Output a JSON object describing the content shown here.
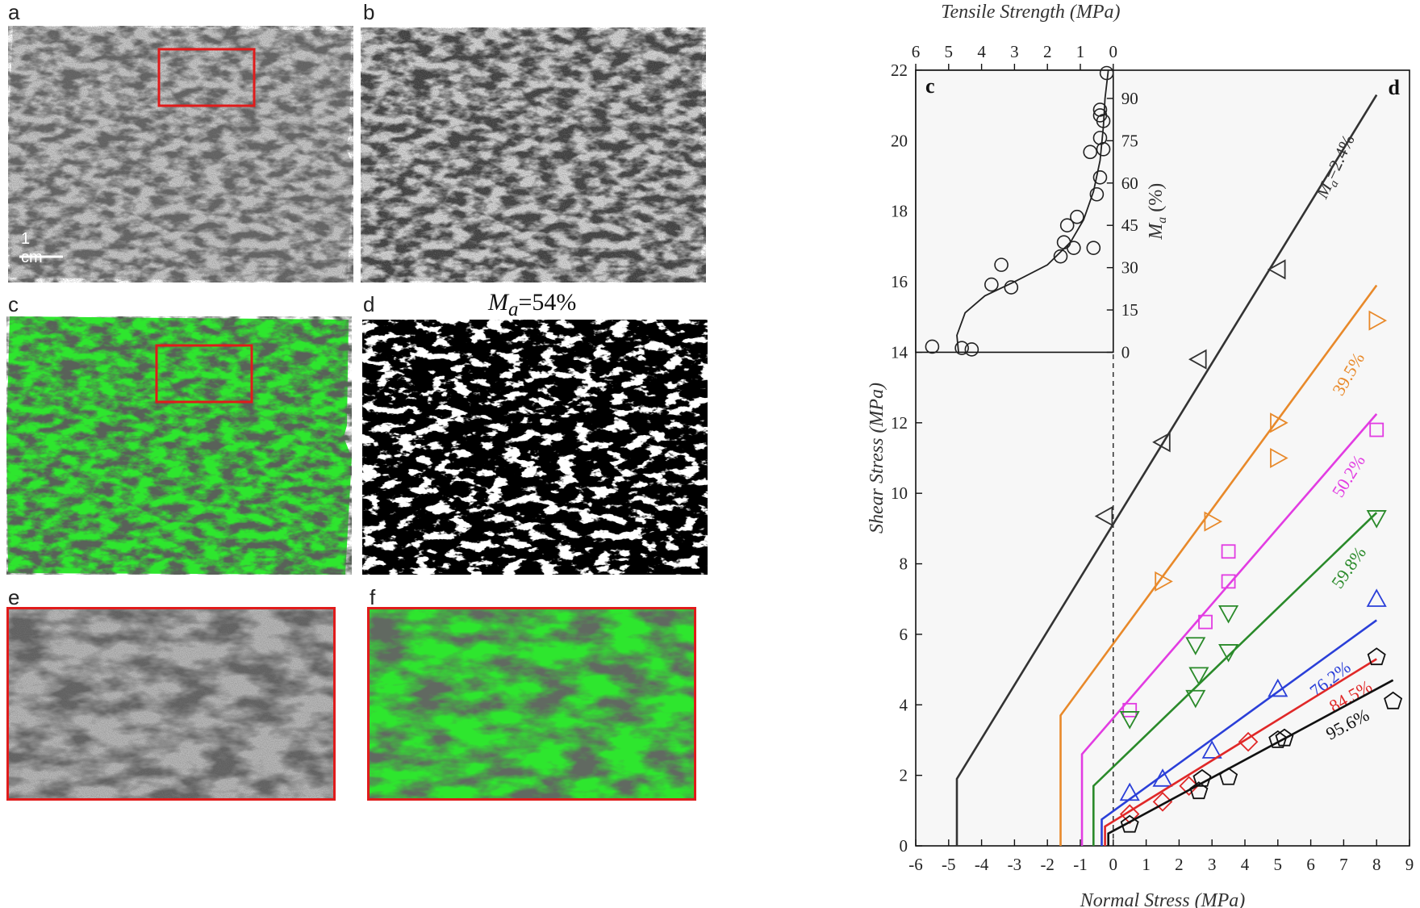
{
  "panels": {
    "a": {
      "label": "a",
      "scale_bar": "1 cm"
    },
    "b": {
      "label": "b"
    },
    "c": {
      "label": "c"
    },
    "d": {
      "label": "d",
      "title_prefix": "M",
      "title_sub": "a",
      "title_suffix": "=54%"
    },
    "e": {
      "label": "e"
    },
    "f": {
      "label": "f"
    }
  },
  "colors": {
    "green_phase": "#2ee62e",
    "dark_rock": "#1a1a1a",
    "light_rock": "#bdbdbd",
    "highlight_box": "#e01b1b"
  },
  "chart_data": [
    {
      "type": "line",
      "panel_label": "d",
      "xlabel": "Normal Stress (MPa)",
      "ylabel": "Shear Stress (MPa)",
      "xlim": [
        -6,
        9
      ],
      "ylim": [
        0,
        22
      ],
      "xticks": [
        -6,
        -5,
        -4,
        -3,
        -2,
        -1,
        0,
        1,
        2,
        3,
        4,
        5,
        6,
        7,
        8,
        9
      ],
      "yticks": [
        0,
        2,
        4,
        6,
        8,
        10,
        12,
        14,
        16,
        18,
        20,
        22
      ],
      "series": [
        {
          "name": "Ma=2.4%",
          "label_prefix": "M",
          "label_sub": "a",
          "label_text": "=2.4%",
          "color": "#333333",
          "marker": "triangle-left",
          "line": [
            [
              -4.75,
              0
            ],
            [
              -4.75,
              1.9
            ],
            [
              8.0,
              21.3
            ]
          ],
          "points": [
            [
              -0.25,
              9.35
            ],
            [
              1.5,
              11.45
            ],
            [
              2.6,
              13.8
            ],
            [
              5.0,
              16.35
            ]
          ]
        },
        {
          "name": "39.5%",
          "label_text": "39.5%",
          "color": "#e8892a",
          "marker": "triangle-right",
          "line": [
            [
              -1.6,
              0
            ],
            [
              -1.6,
              3.7
            ],
            [
              8.0,
              15.9
            ]
          ],
          "points": [
            [
              1.5,
              7.5
            ],
            [
              3.0,
              9.2
            ],
            [
              5.0,
              12.0
            ],
            [
              5.0,
              11.0
            ],
            [
              8.0,
              14.9
            ]
          ]
        },
        {
          "name": "50.2%",
          "label_text": "50.2%",
          "color": "#e23ce2",
          "marker": "square",
          "line": [
            [
              -0.95,
              0
            ],
            [
              -0.95,
              2.6
            ],
            [
              8.0,
              12.25
            ]
          ],
          "points": [
            [
              0.5,
              3.85
            ],
            [
              2.8,
              6.35
            ],
            [
              3.5,
              7.5
            ],
            [
              3.5,
              8.35
            ],
            [
              8.0,
              11.8
            ]
          ]
        },
        {
          "name": "59.8%",
          "label_text": "59.8%",
          "color": "#2a8a2a",
          "marker": "triangle-down",
          "line": [
            [
              -0.6,
              0
            ],
            [
              -0.6,
              1.7
            ],
            [
              8.0,
              9.45
            ]
          ],
          "points": [
            [
              0.5,
              3.6
            ],
            [
              2.5,
              4.2
            ],
            [
              2.6,
              4.85
            ],
            [
              2.5,
              5.7
            ],
            [
              3.5,
              5.5
            ],
            [
              3.5,
              6.6
            ],
            [
              8.0,
              9.3
            ]
          ]
        },
        {
          "name": "76.2%",
          "label_text": "76.2%",
          "color": "#2a3fd8",
          "marker": "triangle-up",
          "line": [
            [
              -0.35,
              0
            ],
            [
              -0.35,
              0.75
            ],
            [
              8.0,
              6.4
            ]
          ],
          "points": [
            [
              0.5,
              1.5
            ],
            [
              1.5,
              1.9
            ],
            [
              3.0,
              2.7
            ],
            [
              5.0,
              4.45
            ],
            [
              8.0,
              7.0
            ]
          ]
        },
        {
          "name": "84.5%",
          "label_text": "84.5%",
          "color": "#e02828",
          "marker": "diamond",
          "line": [
            [
              -0.25,
              0
            ],
            [
              -0.25,
              0.55
            ],
            [
              8.0,
              5.3
            ]
          ],
          "points": [
            [
              0.5,
              0.9
            ],
            [
              1.5,
              1.25
            ],
            [
              2.3,
              1.7
            ],
            [
              4.1,
              2.95
            ]
          ]
        },
        {
          "name": "95.6%",
          "label_text": "95.6%",
          "color": "#111111",
          "marker": "pentagon",
          "line": [
            [
              -0.15,
              0
            ],
            [
              -0.15,
              0.35
            ],
            [
              8.5,
              4.7
            ]
          ],
          "points": [
            [
              0.5,
              0.6
            ],
            [
              2.7,
              1.9
            ],
            [
              3.5,
              1.95
            ],
            [
              2.6,
              1.55
            ],
            [
              5.0,
              3.0
            ],
            [
              5.2,
              3.05
            ],
            [
              8.0,
              5.35
            ],
            [
              8.5,
              4.1
            ]
          ]
        }
      ]
    },
    {
      "type": "scatter",
      "panel_label": "c",
      "xlabel": "Tensile Strength (MPa)",
      "ylabel_prefix": "M",
      "ylabel_sub": "a",
      "ylabel_suffix": " (%)",
      "xlim": [
        6,
        0
      ],
      "ylim": [
        0,
        100
      ],
      "xticks": [
        6,
        5,
        4,
        3,
        2,
        1,
        0
      ],
      "yticks": [
        0,
        15,
        30,
        45,
        60,
        75,
        90
      ],
      "points": [
        [
          5.5,
          2
        ],
        [
          4.6,
          1.5
        ],
        [
          4.3,
          1
        ],
        [
          3.7,
          24
        ],
        [
          3.1,
          23
        ],
        [
          3.4,
          31
        ],
        [
          1.6,
          34
        ],
        [
          1.2,
          37
        ],
        [
          1.5,
          39
        ],
        [
          1.4,
          45
        ],
        [
          1.1,
          48
        ],
        [
          0.6,
          37
        ],
        [
          0.5,
          56
        ],
        [
          0.4,
          62
        ],
        [
          0.7,
          71
        ],
        [
          0.3,
          72
        ],
        [
          0.4,
          76
        ],
        [
          0.3,
          82
        ],
        [
          0.4,
          86
        ],
        [
          0.4,
          84
        ],
        [
          0.2,
          99
        ]
      ],
      "fit": [
        [
          4.7,
          0
        ],
        [
          4.75,
          6
        ],
        [
          4.5,
          14
        ],
        [
          3.9,
          20
        ],
        [
          3.0,
          25
        ],
        [
          2.0,
          31
        ],
        [
          1.3,
          39
        ],
        [
          0.9,
          47
        ],
        [
          0.6,
          57
        ],
        [
          0.4,
          68
        ],
        [
          0.3,
          80
        ],
        [
          0.25,
          90
        ],
        [
          0.15,
          100
        ]
      ]
    }
  ]
}
